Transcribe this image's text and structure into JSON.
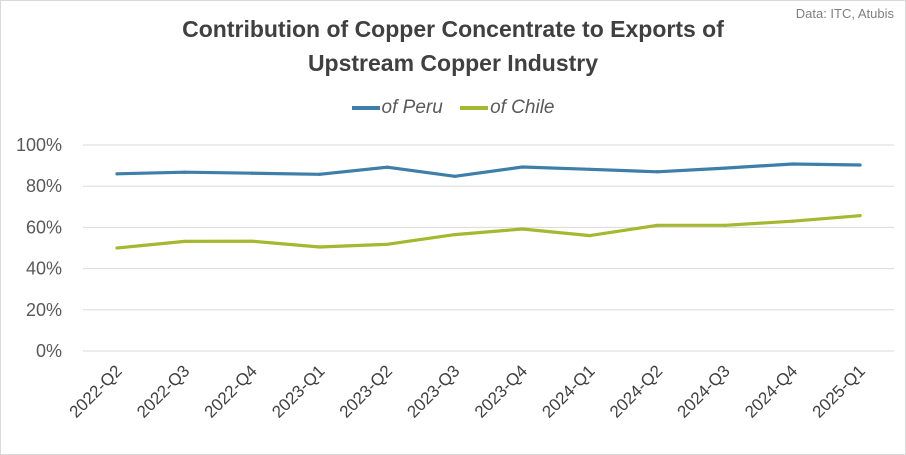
{
  "source_note": "Data: ITC, Atubis",
  "chart_data": {
    "type": "line",
    "title": "Contribution of Copper Concentrate to Exports of Upstream Copper Industry",
    "title_lines": [
      "Contribution of Copper Concentrate to Exports of",
      "Upstream Copper Industry"
    ],
    "xlabel": "",
    "ylabel": "",
    "categories": [
      "2022-Q2",
      "2022-Q3",
      "2022-Q4",
      "2023-Q1",
      "2023-Q2",
      "2023-Q3",
      "2023-Q4",
      "2024-Q1",
      "2024-Q2",
      "2024-Q3",
      "2024-Q4",
      "2025-Q1"
    ],
    "series": [
      {
        "name": "of Peru",
        "color": "#3d7fa8",
        "values": [
          86,
          86.8,
          86.3,
          85.8,
          89.2,
          84.8,
          89.3,
          88.2,
          87,
          88.8,
          90.8,
          90.3
        ]
      },
      {
        "name": "of Chile",
        "color": "#a4b830",
        "values": [
          50,
          53.2,
          53.3,
          50.5,
          51.8,
          56.5,
          59.2,
          56,
          61,
          61,
          63,
          65.7
        ]
      }
    ],
    "ylim": [
      0,
      100
    ],
    "yticks": [
      0,
      20,
      40,
      60,
      80,
      100
    ],
    "ytick_labels": [
      "0%",
      "20%",
      "40%",
      "60%",
      "80%",
      "100%"
    ],
    "grid": true,
    "gridline_color": "#d9d9d9",
    "legend_position": "top-center"
  }
}
